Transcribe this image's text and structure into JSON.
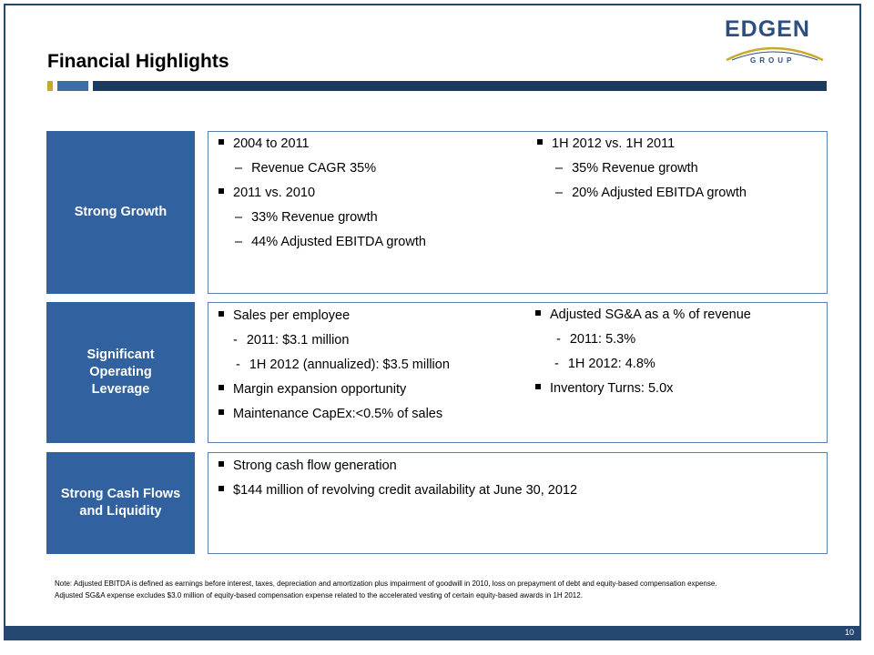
{
  "title": "Financial Highlights",
  "logo": {
    "word": "EDGEN",
    "sub": "GROUP"
  },
  "colors": {
    "navy": "#24466f",
    "blue": "#31619f",
    "gold": "#c9a928"
  },
  "rows": [
    {
      "label": "Strong Growth",
      "left": [
        {
          "kind": "bullet",
          "text": "2004 to 2011"
        },
        {
          "kind": "dash",
          "marker": "–",
          "text": "Revenue  CAGR 35%"
        },
        {
          "kind": "bullet",
          "text": "2011 vs. 2010"
        },
        {
          "kind": "dash",
          "marker": "–",
          "text": "33% Revenue  growth"
        },
        {
          "kind": "dash",
          "marker": "–",
          "text": "44% Adjusted  EBITDA growth"
        }
      ],
      "right": [
        {
          "kind": "bullet",
          "text": "1H 2012 vs. 1H 2011"
        },
        {
          "kind": "dash",
          "marker": "–",
          "text": "35% Revenue  growth"
        },
        {
          "kind": "dash",
          "marker": "–",
          "text": "20% Adjusted  EBITDA growth"
        }
      ]
    },
    {
      "label_lines": [
        "Significant",
        "Operating",
        "Leverage"
      ],
      "left": [
        {
          "kind": "bullet",
          "text": "Sales per employee"
        },
        {
          "kind": "dash",
          "marker": "-",
          "text": "2011: $3.1 million"
        },
        {
          "kind": "dash",
          "marker": "-",
          "text": "1H 2012 (annualized):  $3.5 million"
        },
        {
          "kind": "bullet",
          "text": "Margin expansion  opportunity"
        },
        {
          "kind": "bullet",
          "text": "Maintenance  CapEx:<0.5% of sales"
        }
      ],
      "right": [
        {
          "kind": "bullet",
          "text": "Adjusted SG&A as a % of revenue"
        },
        {
          "kind": "dash",
          "marker": "-",
          "text": "2011: 5.3%"
        },
        {
          "kind": "dash",
          "marker": "-",
          "text": "1H 2012: 4.8%"
        },
        {
          "kind": "bullet",
          "text": "Inventory  Turns:  5.0x"
        }
      ]
    },
    {
      "label_lines": [
        "Strong Cash Flows",
        "and Liquidity"
      ],
      "left": [
        {
          "kind": "bullet",
          "text": "Strong cash flow generation"
        },
        {
          "kind": "bullet",
          "text": "$144 million of revolving  credit availability at June 30, 2012"
        }
      ]
    }
  ],
  "notes": [
    "Note: Adjusted EBITDA is defined as earnings before interest, taxes, depreciation and amortization plus impairment of goodwill in 2010, loss on prepayment of debt and equity-based compensation expense.",
    "Adjusted SG&A expense excludes $3.0 million of equity-based compensation expense related to the accelerated vesting of certain equity-based awards in 1H 2012."
  ],
  "page_number": "10"
}
